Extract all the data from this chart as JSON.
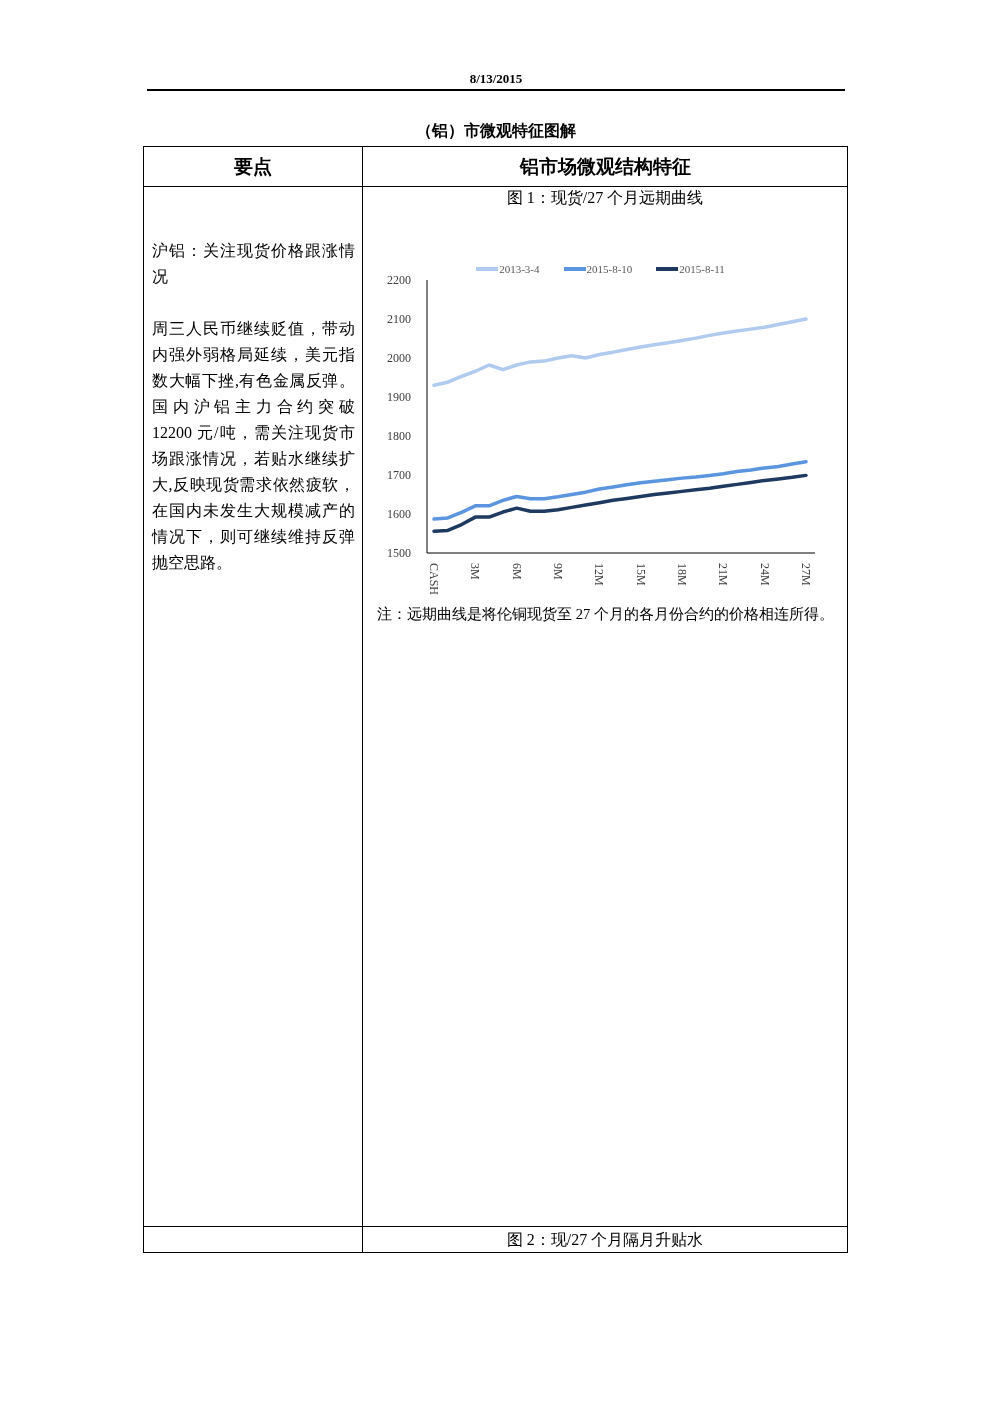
{
  "chart_data": {
    "type": "line",
    "title": "图 1：现货/27 个月远期曲线",
    "categories": [
      "CASH",
      null,
      null,
      "3M",
      null,
      null,
      "6M",
      null,
      null,
      "9M",
      null,
      null,
      "12M",
      null,
      null,
      "15M",
      null,
      null,
      "18M",
      null,
      null,
      "21M",
      null,
      null,
      "24M",
      null,
      null,
      "27M"
    ],
    "series": [
      {
        "name": "2013-3-4",
        "color": "#b0cbef",
        "values": [
          1930,
          1938,
          1953,
          1966,
          1982,
          1970,
          1982,
          1990,
          1992,
          2000,
          2006,
          2000,
          2009,
          2015,
          2022,
          2028,
          2034,
          2039,
          2045,
          2051,
          2058,
          2064,
          2069,
          2074,
          2079,
          2086,
          2093,
          2100
        ]
      },
      {
        "name": "2015-8-10",
        "color": "#5b95e0",
        "values": [
          1587,
          1590,
          1604,
          1621,
          1621,
          1635,
          1645,
          1639,
          1639,
          1644,
          1650,
          1656,
          1664,
          1669,
          1675,
          1680,
          1684,
          1688,
          1692,
          1695,
          1699,
          1703,
          1709,
          1713,
          1718,
          1722,
          1728,
          1734
        ]
      },
      {
        "name": "2015-8-11",
        "color": "#1f3a60",
        "values": [
          1556,
          1558,
          1573,
          1592,
          1592,
          1605,
          1615,
          1607,
          1607,
          1611,
          1617,
          1623,
          1629,
          1635,
          1640,
          1645,
          1650,
          1654,
          1658,
          1662,
          1666,
          1671,
          1676,
          1681,
          1686,
          1690,
          1694,
          1699
        ]
      }
    ],
    "ylim": [
      1500,
      2200
    ],
    "yticks": [
      1500,
      1600,
      1700,
      1800,
      1900,
      2000,
      2100,
      2200
    ],
    "legend": "top",
    "marker": "none",
    "annotations": [
      "8/13/2015",
      "（铝）市微观特征图解",
      "要点",
      "铝市场微观结构特征",
      "沪铝：关注现货价格跟涨情况",
      "周三人民币继续贬值，带动内强外弱格局延续，美元指数大幅下挫,有色金属反弹。国内沪铝主力合约突破 12200 元/吨，需关注现货市场跟涨情况，若贴水继续扩大,反映现货需求依然疲软，在国内未发生大规模减产的情况下，则可继续维持反弹抛空思路。",
      "注：远期曲线是将伦铜现货至 27 个月的各月份合约的价格相连所得。",
      "图 2：现/27 个月隔月升贴水"
    ]
  }
}
